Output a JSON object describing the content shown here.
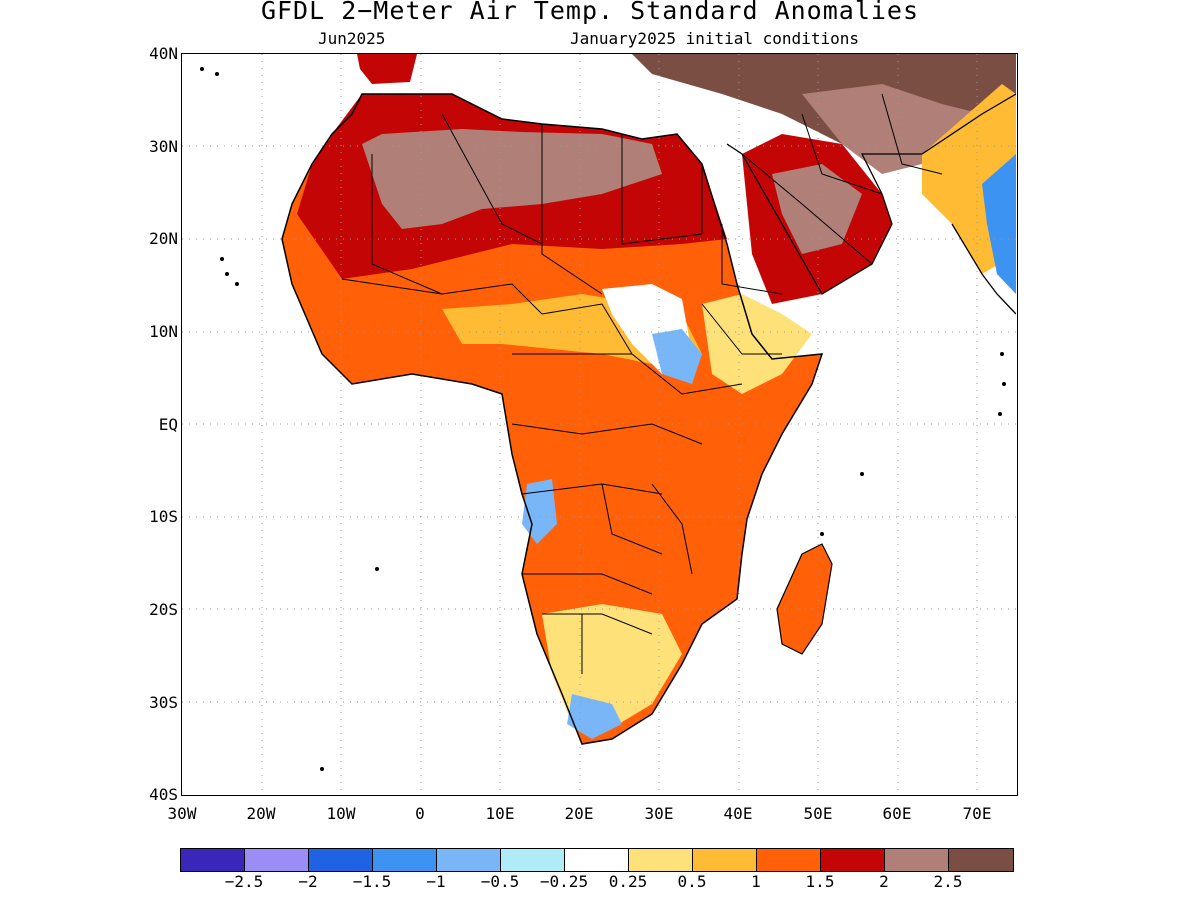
{
  "title": "GFDL 2−Meter Air Temp. Standard Anomalies",
  "subtitle_left": "Jun2025",
  "subtitle_right": "January2025 initial conditions",
  "lat_labels": [
    "40N",
    "30N",
    "20N",
    "10N",
    "EQ",
    "10S",
    "20S",
    "30S",
    "40S"
  ],
  "lon_labels": [
    "30W",
    "20W",
    "10W",
    "0",
    "10E",
    "20E",
    "30E",
    "40E",
    "50E",
    "60E",
    "70E"
  ],
  "colorbar": {
    "colors": [
      "#3a26b8",
      "#9c8cf5",
      "#1f62e3",
      "#3c93f2",
      "#79b6f7",
      "#b0ecf7",
      "#ffffff",
      "#ffe17a",
      "#ffbb33",
      "#ff6008",
      "#c40505",
      "#b08078",
      "#7a4e42"
    ],
    "labels": [
      "−2.5",
      "−2",
      "−1.5",
      "−1",
      "−0.5",
      "−0.25",
      "0.25",
      "0.5",
      "1",
      "1.5",
      "2",
      "2.5"
    ]
  },
  "map": {
    "land_outline": "#000000",
    "grid_color": "#999999"
  }
}
